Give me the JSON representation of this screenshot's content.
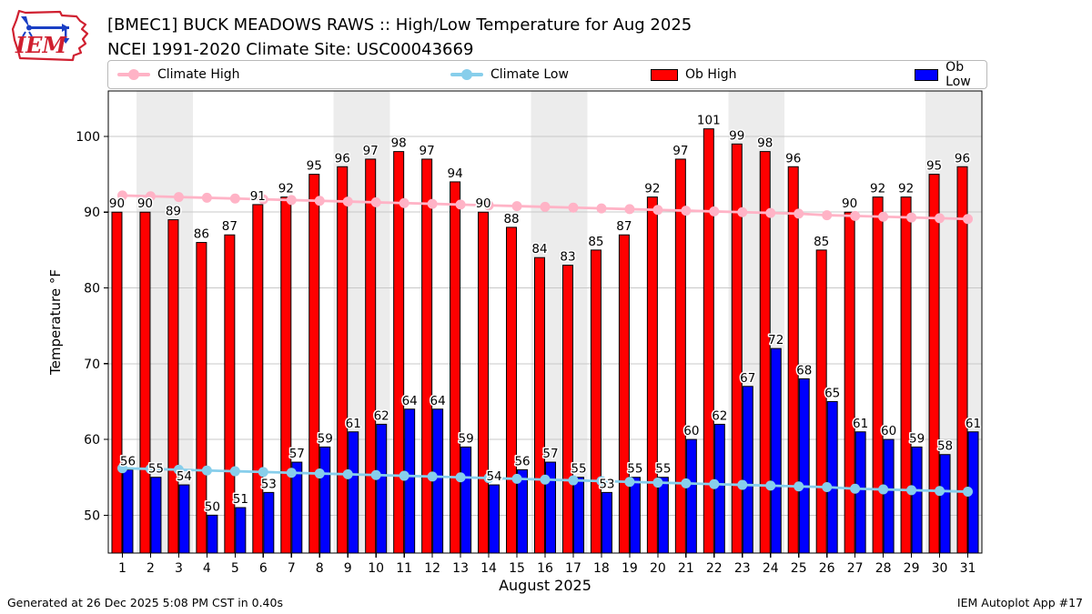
{
  "header": {
    "title": "[BMEC1] BUCK MEADOWS RAWS :: High/Low Temperature for Aug 2025",
    "subtitle": "NCEI 1991-2020 Climate Site: USC00043669"
  },
  "logo": {
    "text": "IEM"
  },
  "legend": [
    {
      "label": "Climate High",
      "swatch": "line-dot",
      "color": "#ffb3c6"
    },
    {
      "label": "Climate Low",
      "swatch": "line-dot",
      "color": "#87ceeb"
    },
    {
      "label": "Ob High",
      "swatch": "rect",
      "color": "#ff0000"
    },
    {
      "label": "Ob Low",
      "swatch": "rect",
      "color": "#0000ff"
    }
  ],
  "chart_data": {
    "type": "bar",
    "title": "[BMEC1] BUCK MEADOWS RAWS :: High/Low Temperature for Aug 2025",
    "xlabel": "August 2025",
    "ylabel": "Temperature °F",
    "ylim": [
      45,
      106
    ],
    "yticks": [
      50,
      60,
      70,
      80,
      90,
      100
    ],
    "grid": true,
    "legend_position": "top",
    "categories": [
      1,
      2,
      3,
      4,
      5,
      6,
      7,
      8,
      9,
      10,
      11,
      12,
      13,
      14,
      15,
      16,
      17,
      18,
      19,
      20,
      21,
      22,
      23,
      24,
      25,
      26,
      27,
      28,
      29,
      30,
      31
    ],
    "weekend_bands": [
      [
        2,
        3
      ],
      [
        9,
        10
      ],
      [
        16,
        17
      ],
      [
        23,
        24
      ],
      [
        30,
        31
      ]
    ],
    "band_color": "#ececec",
    "grid_color": "#c8c8c8",
    "series": [
      {
        "name": "Ob High",
        "type": "bar",
        "color": "#ff0000",
        "values": [
          90,
          90,
          89,
          86,
          87,
          91,
          92,
          95,
          96,
          97,
          98,
          97,
          94,
          90,
          88,
          84,
          83,
          85,
          87,
          92,
          97,
          101,
          99,
          98,
          96,
          85,
          90,
          92,
          92,
          95,
          96
        ]
      },
      {
        "name": "Ob Low",
        "type": "bar",
        "color": "#0000ff",
        "values": [
          56,
          55,
          54,
          50,
          51,
          53,
          57,
          59,
          61,
          62,
          64,
          64,
          59,
          54,
          56,
          57,
          55,
          53,
          55,
          55,
          60,
          62,
          67,
          72,
          68,
          65,
          61,
          60,
          59,
          58,
          61
        ]
      },
      {
        "name": "Climate High",
        "type": "line",
        "color": "#ffb3c6",
        "values": [
          92.2,
          92.1,
          92.0,
          91.9,
          91.8,
          91.7,
          91.6,
          91.5,
          91.4,
          91.3,
          91.2,
          91.1,
          91.0,
          90.9,
          90.8,
          90.7,
          90.6,
          90.5,
          90.4,
          90.3,
          90.2,
          90.1,
          90.0,
          89.9,
          89.8,
          89.6,
          89.5,
          89.4,
          89.3,
          89.2,
          89.1
        ]
      },
      {
        "name": "Climate Low",
        "type": "line",
        "color": "#87ceeb",
        "values": [
          56.2,
          56.1,
          56.0,
          55.9,
          55.8,
          55.7,
          55.6,
          55.5,
          55.4,
          55.3,
          55.2,
          55.1,
          55.0,
          54.9,
          54.8,
          54.7,
          54.6,
          54.5,
          54.4,
          54.3,
          54.2,
          54.1,
          54.0,
          53.9,
          53.8,
          53.7,
          53.5,
          53.4,
          53.3,
          53.2,
          53.1
        ]
      }
    ]
  },
  "footer": {
    "left": "Generated at 26 Dec 2025 5:08 PM CST in 0.40s",
    "right": "IEM Autoplot App #17"
  }
}
